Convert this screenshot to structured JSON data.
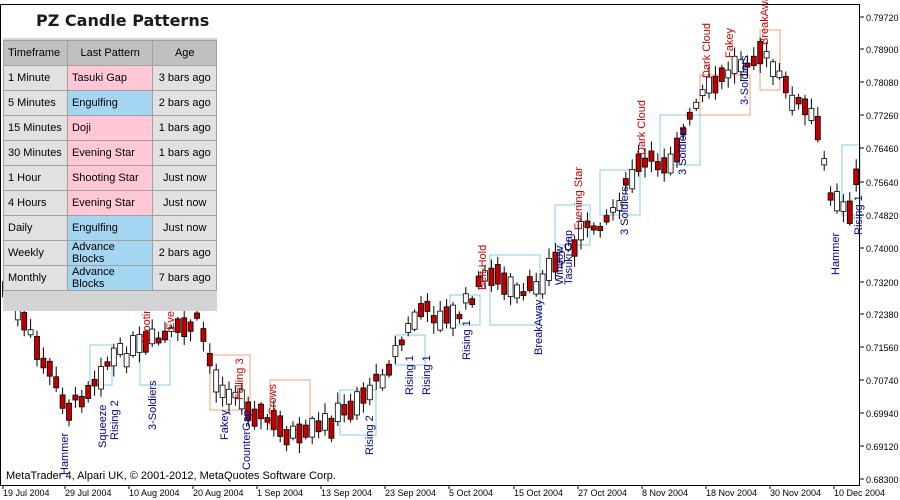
{
  "panel": {
    "title": "PZ Candle Patterns",
    "columns": [
      "Timeframe",
      "Last Pattern",
      "Age"
    ],
    "rows": [
      {
        "timeframe": "1 Minute",
        "pattern": "Tasuki Gap",
        "age": "3 bars ago",
        "kind": "bear"
      },
      {
        "timeframe": "5 Minutes",
        "pattern": "Engulfing",
        "age": "2 bars ago",
        "kind": "bull"
      },
      {
        "timeframe": "15 Minutes",
        "pattern": "Doji",
        "age": "1 bars ago",
        "kind": "bear"
      },
      {
        "timeframe": "30 Minutes",
        "pattern": "Evening Star",
        "age": "1 bars ago",
        "kind": "bear"
      },
      {
        "timeframe": "1 Hour",
        "pattern": "Shooting Star",
        "age": "Just now",
        "kind": "bear"
      },
      {
        "timeframe": "4 Hours",
        "pattern": "Evening Star",
        "age": "Just now",
        "kind": "bear"
      },
      {
        "timeframe": "Daily",
        "pattern": "Engulfing",
        "age": "Just now",
        "kind": "bull"
      },
      {
        "timeframe": "Weekly",
        "pattern": "Advance Blocks",
        "age": "2 bars ago",
        "kind": "bull"
      },
      {
        "timeframe": "Monthly",
        "pattern": "Advance Blocks",
        "age": "7 bars ago",
        "kind": "bull"
      }
    ]
  },
  "copyright": "MetaTrader 4, Alpari UK, © 2001-2012, MetaQuotes Software Corp.",
  "colors": {
    "bull_text": "#00008b",
    "bear_text": "#cc0000",
    "bear_candle": "#c00000",
    "bull_box": "#87ceeb",
    "bear_box": "#f4a07a"
  },
  "chart_data": {
    "type": "candlestick",
    "y_ticks": [
      "0.79720",
      "0.78900",
      "0.78080",
      "0.77260",
      "0.76460",
      "0.75640",
      "0.74820",
      "0.74000",
      "0.73200",
      "0.72380",
      "0.71560",
      "0.70740",
      "0.69940",
      "0.69120",
      "0.68300"
    ],
    "x_ticks": [
      "19 Jul 2004",
      "29 Jul 2004",
      "10 Aug 2004",
      "20 Aug 2004",
      "1 Sep 2004",
      "13 Sep 2004",
      "23 Sep 2004",
      "5 Oct 2004",
      "15 Oct 2004",
      "27 Oct 2004",
      "8 Nov 2004",
      "18 Nov 2004",
      "30 Nov 2004",
      "10 Dec 2004"
    ],
    "annotations": [
      {
        "text": "Hammer",
        "bull": true
      },
      {
        "text": "Squeeze",
        "bull": true
      },
      {
        "text": "Rising 2",
        "bull": true
      },
      {
        "text": "3-Soldiers",
        "bull": true
      },
      {
        "text": "Shooting",
        "bull": false
      },
      {
        "text": "Eve",
        "bull": false
      },
      {
        "text": "Fakey",
        "bull": true
      },
      {
        "text": "Falling 3",
        "bull": false
      },
      {
        "text": "CounterGap",
        "bull": true
      },
      {
        "text": "3-Crows",
        "bull": false
      },
      {
        "text": "Rising 2",
        "bull": true
      },
      {
        "text": "Rising 1",
        "bull": true
      },
      {
        "text": "Rising 1",
        "bull": true
      },
      {
        "text": "Rising 1",
        "bull": true
      },
      {
        "text": "Belt-Hold",
        "bull": false
      },
      {
        "text": "BreakAway",
        "bull": true
      },
      {
        "text": "Window",
        "bull": true
      },
      {
        "text": "Tasuki Gap",
        "bull": true
      },
      {
        "text": "Evening Star",
        "bull": false
      },
      {
        "text": "3 Soldiers",
        "bull": true
      },
      {
        "text": "Dark Cloud",
        "bull": false
      },
      {
        "text": "3 Soldiers",
        "bull": true
      },
      {
        "text": "Dark Cloud",
        "bull": false
      },
      {
        "text": "Fakey",
        "bull": false
      },
      {
        "text": "3-Soldiers",
        "bull": true
      },
      {
        "text": "BreakAway",
        "bull": false
      },
      {
        "text": "Hammer",
        "bull": true
      },
      {
        "text": "Rising 1",
        "bull": true
      }
    ]
  }
}
